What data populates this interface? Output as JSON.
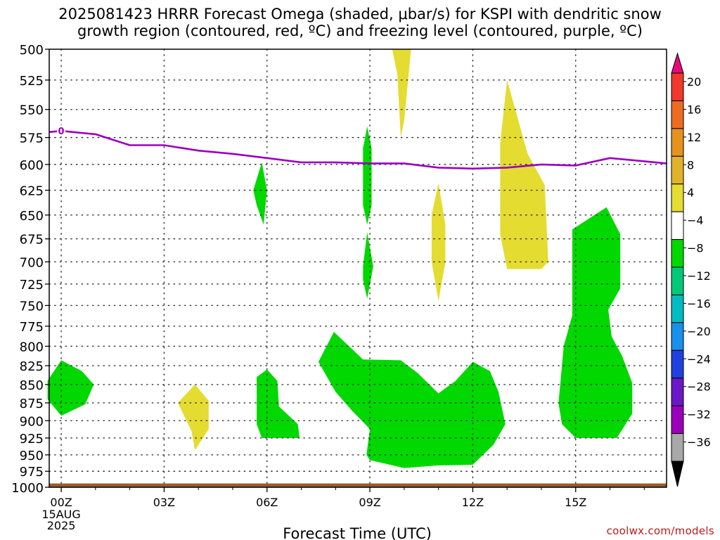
{
  "title_line1": "2025081423 HRRR Forecast Omega (shaded, μbar/s) for KSPI with dendritic snow",
  "title_line2": "growth region (contoured, red, ºC) and freezing level (contoured, purple, ºC)",
  "watermark": "coolwx.com/models",
  "chart_data": {
    "type": "contour",
    "xlabel": "Forecast Time (UTC)",
    "x_unit": "hours after 2025-08-15 00Z",
    "xlim": [
      -0.35,
      17.65
    ],
    "ylim": [
      500,
      1000
    ],
    "y_log_pressure": true,
    "grid": true,
    "x_ticks": [
      {
        "x": 0,
        "label": "00Z"
      },
      {
        "x": 3,
        "label": "03Z"
      },
      {
        "x": 6,
        "label": "06Z"
      },
      {
        "x": 9,
        "label": "09Z"
      },
      {
        "x": 12,
        "label": "12Z"
      },
      {
        "x": 15,
        "label": "15Z"
      }
    ],
    "x_sublabels": [
      "15AUG",
      "2025"
    ],
    "y_ticks": [
      500,
      525,
      550,
      575,
      600,
      625,
      650,
      675,
      700,
      725,
      750,
      775,
      800,
      825,
      850,
      875,
      900,
      925,
      950,
      975,
      1000
    ],
    "colorbar": {
      "labels": [
        "20",
        "16",
        "12",
        "8",
        "4",
        "−4",
        "−8",
        "−12",
        "−16",
        "−20",
        "−24",
        "−28",
        "−32",
        "−36"
      ],
      "colors": [
        "#e80a78",
        "#f0382c",
        "#ee6c20",
        "#e8921e",
        "#e0b42a",
        "#e4dc30",
        "#ffffff",
        "#00d800",
        "#00c878",
        "#00bcc0",
        "#1890ec",
        "#2040e0",
        "#6a18c8",
        "#9a00bc",
        "#a8a8a8",
        "#000000"
      ]
    },
    "freezing_level": {
      "color": "#9a00c0",
      "label": "0",
      "points": [
        [
          -0.35,
          570
        ],
        [
          0,
          569
        ],
        [
          1,
          572
        ],
        [
          2,
          582
        ],
        [
          3,
          582
        ],
        [
          4,
          587
        ],
        [
          5,
          590
        ],
        [
          6,
          594
        ],
        [
          7,
          598
        ],
        [
          8,
          598
        ],
        [
          9,
          599
        ],
        [
          10,
          599
        ],
        [
          11,
          603
        ],
        [
          12,
          604
        ],
        [
          13,
          603
        ],
        [
          14,
          600
        ],
        [
          15,
          601
        ],
        [
          16,
          594
        ],
        [
          17.65,
          599
        ]
      ]
    },
    "omega_regions": [
      {
        "value": 4,
        "color": "#e4dc30",
        "points": [
          [
            9.65,
            500
          ],
          [
            10.2,
            500
          ],
          [
            10.0,
            560
          ],
          [
            9.9,
            575
          ],
          [
            9.8,
            520
          ]
        ]
      },
      {
        "value": 4,
        "color": "#e4dc30",
        "points": [
          [
            12.8,
            580
          ],
          [
            13.0,
            525
          ],
          [
            13.6,
            590
          ],
          [
            14.1,
            620
          ],
          [
            14.2,
            700
          ],
          [
            14.0,
            708
          ],
          [
            13.0,
            708
          ],
          [
            12.8,
            670
          ]
        ]
      },
      {
        "value": 4,
        "color": "#e4dc30",
        "points": [
          [
            10.8,
            650
          ],
          [
            11.0,
            618
          ],
          [
            11.2,
            660
          ],
          [
            11.2,
            700
          ],
          [
            11.0,
            745
          ],
          [
            10.8,
            700
          ]
        ]
      },
      {
        "value": 4,
        "color": "#e4dc30",
        "points": [
          [
            3.4,
            875
          ],
          [
            3.9,
            850
          ],
          [
            4.3,
            872
          ],
          [
            4.3,
            912
          ],
          [
            3.9,
            943
          ],
          [
            3.8,
            915
          ]
        ]
      },
      {
        "value": -4,
        "color": "#00d800",
        "points": [
          [
            8.8,
            585
          ],
          [
            8.92,
            565
          ],
          [
            9.05,
            585
          ],
          [
            9.05,
            640
          ],
          [
            8.92,
            660
          ],
          [
            8.8,
            640
          ]
        ]
      },
      {
        "value": -4,
        "color": "#00d800",
        "points": [
          [
            8.8,
            705
          ],
          [
            8.92,
            668
          ],
          [
            9.1,
            705
          ],
          [
            8.92,
            742
          ],
          [
            8.8,
            720
          ]
        ]
      },
      {
        "value": -4,
        "color": "#00d800",
        "points": [
          [
            5.6,
            625
          ],
          [
            5.85,
            598
          ],
          [
            6.0,
            625
          ],
          [
            5.9,
            660
          ],
          [
            5.7,
            640
          ]
        ]
      },
      {
        "value": -4,
        "color": "#00d800",
        "points": [
          [
            -0.4,
            845
          ],
          [
            0,
            818
          ],
          [
            0.6,
            832
          ],
          [
            0.95,
            850
          ],
          [
            0.7,
            877
          ],
          [
            0,
            893
          ],
          [
            -0.4,
            870
          ]
        ]
      },
      {
        "value": -4,
        "color": "#00d800",
        "points": [
          [
            5.7,
            840
          ],
          [
            6.0,
            830
          ],
          [
            6.3,
            845
          ],
          [
            6.35,
            880
          ],
          [
            6.9,
            905
          ],
          [
            6.95,
            925
          ],
          [
            5.85,
            925
          ],
          [
            5.7,
            905
          ]
        ]
      },
      {
        "value": -4,
        "color": "#00d800",
        "points": [
          [
            7.5,
            820
          ],
          [
            7.95,
            782
          ],
          [
            8.8,
            817
          ],
          [
            9.9,
            818
          ],
          [
            10.4,
            835
          ],
          [
            11.0,
            862
          ],
          [
            11.5,
            845
          ],
          [
            12.0,
            820
          ],
          [
            12.5,
            832
          ],
          [
            12.75,
            860
          ],
          [
            12.95,
            905
          ],
          [
            12.6,
            935
          ],
          [
            12.0,
            965
          ],
          [
            11.0,
            966
          ],
          [
            10.0,
            970
          ],
          [
            9.0,
            958
          ],
          [
            8.9,
            950
          ],
          [
            9.0,
            912
          ],
          [
            8.5,
            887
          ],
          [
            8.0,
            860
          ]
        ]
      },
      {
        "value": -4,
        "color": "#00d800",
        "points": [
          [
            14.65,
            800
          ],
          [
            14.9,
            762
          ],
          [
            14.9,
            665
          ],
          [
            15.9,
            642
          ],
          [
            16.3,
            670
          ],
          [
            16.3,
            730
          ],
          [
            15.95,
            755
          ],
          [
            16.05,
            788
          ],
          [
            16.35,
            812
          ],
          [
            16.65,
            848
          ],
          [
            16.65,
            890
          ],
          [
            16.2,
            925
          ],
          [
            15.0,
            925
          ],
          [
            14.6,
            905
          ],
          [
            14.5,
            875
          ],
          [
            14.55,
            850
          ]
        ]
      }
    ],
    "ground": {
      "color": "#9c5a2c",
      "top_pressure": 994
    }
  }
}
